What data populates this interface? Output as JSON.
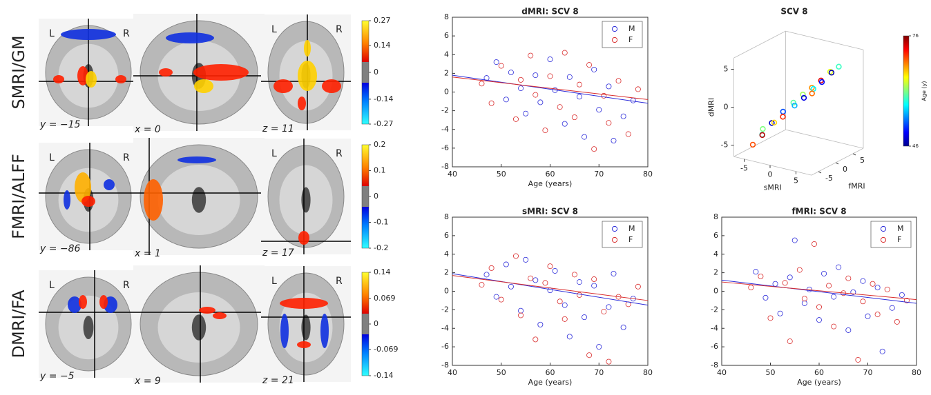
{
  "brain_panels": [
    {
      "label": "SMRI/GM",
      "views": [
        {
          "coord": "y = −15",
          "left": "L",
          "right": "R"
        },
        {
          "coord": "x = 0"
        },
        {
          "coord": "z = 11",
          "left": "L",
          "right": "R"
        }
      ],
      "colorbar": {
        "lim": [
          -0.27,
          0.27
        ],
        "ticks": [
          0.27,
          0.14,
          0,
          -0.14,
          -0.27
        ]
      }
    },
    {
      "label": "FMRI/ALFF",
      "views": [
        {
          "coord": "y = −86",
          "left": "L",
          "right": "R"
        },
        {
          "coord": "x = 1"
        },
        {
          "coord": "z = 17",
          "left": "L",
          "right": "R"
        }
      ],
      "colorbar": {
        "lim": [
          -0.2,
          0.2
        ],
        "ticks": [
          0.2,
          0.1,
          0,
          -0.1,
          -0.2
        ]
      }
    },
    {
      "label": "DMRI/FA",
      "views": [
        {
          "coord": "y = −5",
          "left": "L",
          "right": "R"
        },
        {
          "coord": "x = 9"
        },
        {
          "coord": "z = 21",
          "left": "L",
          "right": "R"
        }
      ],
      "colorbar": {
        "lim": [
          -0.14,
          0.14
        ],
        "ticks": [
          0.14,
          0.069,
          0,
          -0.069,
          -0.14
        ]
      }
    }
  ],
  "chart_data": [
    {
      "type": "scatter",
      "title": "dMRI: SCV 8",
      "x_label": "Age (years)",
      "xlim": [
        40,
        80
      ],
      "ylim": [
        -8,
        8
      ],
      "xticks": [
        40,
        50,
        60,
        70,
        80
      ],
      "yticks": [
        -8,
        -6,
        -4,
        -2,
        0,
        2,
        4,
        6,
        8
      ],
      "series": [
        {
          "name": "M",
          "color": "#2b2bd9",
          "x": [
            47,
            49,
            51,
            52,
            54,
            55,
            57,
            58,
            60,
            61,
            63,
            64,
            66,
            67,
            69,
            70,
            72,
            73,
            75,
            77
          ],
          "values": [
            1.5,
            3.2,
            -0.8,
            2.1,
            0.4,
            -2.3,
            1.8,
            -1.1,
            3.5,
            0.2,
            -3.4,
            1.6,
            -0.5,
            -4.8,
            2.4,
            -1.9,
            0.6,
            -5.2,
            -2.6,
            -0.9
          ]
        },
        {
          "name": "F",
          "color": "#d92b2b",
          "x": [
            46,
            48,
            50,
            53,
            54,
            56,
            57,
            59,
            60,
            62,
            63,
            65,
            66,
            68,
            69,
            71,
            72,
            74,
            76,
            78
          ],
          "values": [
            0.9,
            -1.2,
            2.8,
            -2.9,
            1.3,
            3.9,
            -0.3,
            -4.1,
            1.7,
            -1.6,
            4.2,
            -2.7,
            0.8,
            2.9,
            -6.1,
            -0.4,
            -3.3,
            1.2,
            -4.5,
            0.3
          ]
        }
      ],
      "fits": [
        {
          "color": "#2b2bd9",
          "x": [
            40,
            80
          ],
          "values": [
            1.8,
            -1.2
          ]
        },
        {
          "color": "#d92b2b",
          "x": [
            40,
            80
          ],
          "values": [
            1.6,
            -0.8
          ]
        }
      ]
    },
    {
      "type": "scatter3d",
      "title": "SCV 8",
      "x_label": "sMRI",
      "y_label": "fMRI",
      "z_label": "dMRI",
      "xlim": [
        -7,
        8
      ],
      "ylim": [
        -7,
        8
      ],
      "zlim": [
        -6.5,
        6.5
      ],
      "xticks": [
        -5,
        0,
        5
      ],
      "yticks": [
        -5,
        0,
        5
      ],
      "zticks": [
        -5,
        0,
        5
      ],
      "colorbar_label": "Age (y)",
      "clim": [
        46,
        76
      ],
      "cticks": [
        46,
        76
      ],
      "x": [
        -5,
        -4.2,
        -3.5,
        -3,
        -2.2,
        -1.5,
        -1,
        -0.3,
        0.4,
        1,
        1.6,
        2.2,
        2.9,
        3.5,
        4,
        4.6,
        5.2,
        5.8,
        -4.6,
        3.1
      ],
      "y": [
        -4.5,
        -3,
        -4,
        -2,
        -2.5,
        -1,
        -1.8,
        0.2,
        -0.5,
        1,
        0.4,
        1.8,
        1.2,
        2.5,
        2,
        3.5,
        3,
        4.2,
        -2.2,
        0.5
      ],
      "z": [
        -5.2,
        -4.1,
        -3.8,
        -2.6,
        -2.3,
        -1.1,
        -1.5,
        0,
        -0.1,
        1.1,
        0.9,
        2,
        2.1,
        3,
        3,
        4.1,
        4.2,
        4.8,
        -3.6,
        1.7
      ],
      "age": [
        70,
        58,
        74,
        48,
        66,
        52,
        71,
        60,
        55,
        62,
        49,
        68,
        57,
        73,
        50,
        64,
        47,
        59,
        61,
        69
      ]
    },
    {
      "type": "scatter",
      "title": "sMRI: SCV 8",
      "x_label": "Age (years)",
      "xlim": [
        40,
        80
      ],
      "ylim": [
        -8,
        8
      ],
      "xticks": [
        40,
        50,
        60,
        70,
        80
      ],
      "yticks": [
        -8,
        -6,
        -4,
        -2,
        0,
        2,
        4,
        6,
        8
      ],
      "series": [
        {
          "name": "M",
          "color": "#2b2bd9",
          "x": [
            47,
            49,
            51,
            52,
            54,
            55,
            57,
            58,
            60,
            61,
            63,
            64,
            66,
            67,
            69,
            70,
            72,
            73,
            75,
            77
          ],
          "values": [
            1.8,
            -0.6,
            2.9,
            0.5,
            -2.1,
            3.4,
            1.2,
            -3.6,
            0.1,
            2.2,
            -1.5,
            -4.9,
            1.0,
            -2.8,
            0.6,
            -6.0,
            -1.7,
            1.9,
            -3.9,
            -0.8
          ]
        },
        {
          "name": "F",
          "color": "#d92b2b",
          "x": [
            46,
            48,
            50,
            53,
            54,
            56,
            57,
            59,
            60,
            62,
            63,
            65,
            66,
            68,
            69,
            71,
            72,
            74,
            76,
            78
          ],
          "values": [
            0.7,
            2.5,
            -0.9,
            3.8,
            -2.6,
            1.4,
            -5.2,
            0.9,
            2.7,
            -1.1,
            -3.0,
            1.8,
            -0.4,
            -6.9,
            1.3,
            -2.2,
            -7.6,
            -0.6,
            -1.4,
            0.5
          ]
        }
      ],
      "fits": [
        {
          "color": "#2b2bd9",
          "x": [
            40,
            80
          ],
          "values": [
            1.9,
            -1.5
          ]
        },
        {
          "color": "#d92b2b",
          "x": [
            40,
            80
          ],
          "values": [
            1.7,
            -1.0
          ]
        }
      ]
    },
    {
      "type": "scatter",
      "title": "fMRI: SCV 8",
      "x_label": "Age (years)",
      "xlim": [
        40,
        80
      ],
      "ylim": [
        -8,
        8
      ],
      "xticks": [
        40,
        50,
        60,
        70,
        80
      ],
      "yticks": [
        -8,
        -6,
        -4,
        -2,
        0,
        2,
        4,
        6,
        8
      ],
      "series": [
        {
          "name": "M",
          "color": "#2b2bd9",
          "x": [
            47,
            49,
            51,
            52,
            54,
            55,
            57,
            58,
            60,
            61,
            63,
            64,
            66,
            67,
            69,
            70,
            72,
            73,
            75,
            77
          ],
          "values": [
            2.1,
            -0.7,
            0.8,
            -2.4,
            1.5,
            5.5,
            -1.3,
            0.2,
            -3.1,
            1.9,
            -0.6,
            2.6,
            -4.2,
            -0.1,
            1.1,
            -2.7,
            0.4,
            -6.5,
            -1.8,
            -0.4
          ]
        },
        {
          "name": "F",
          "color": "#d92b2b",
          "x": [
            46,
            48,
            50,
            53,
            54,
            56,
            57,
            59,
            60,
            62,
            63,
            65,
            66,
            68,
            69,
            71,
            72,
            74,
            76,
            78
          ],
          "values": [
            0.4,
            1.6,
            -2.9,
            0.9,
            -5.4,
            2.3,
            -0.8,
            5.1,
            -1.7,
            0.6,
            -3.8,
            -0.2,
            1.4,
            -7.4,
            -1.1,
            0.8,
            -2.5,
            0.2,
            -3.3,
            -1.0
          ]
        }
      ],
      "fits": [
        {
          "color": "#2b2bd9",
          "x": [
            40,
            80
          ],
          "values": [
            1.2,
            -1.3
          ]
        },
        {
          "color": "#d92b2b",
          "x": [
            40,
            80
          ],
          "values": [
            1.0,
            -0.9
          ]
        }
      ]
    }
  ]
}
